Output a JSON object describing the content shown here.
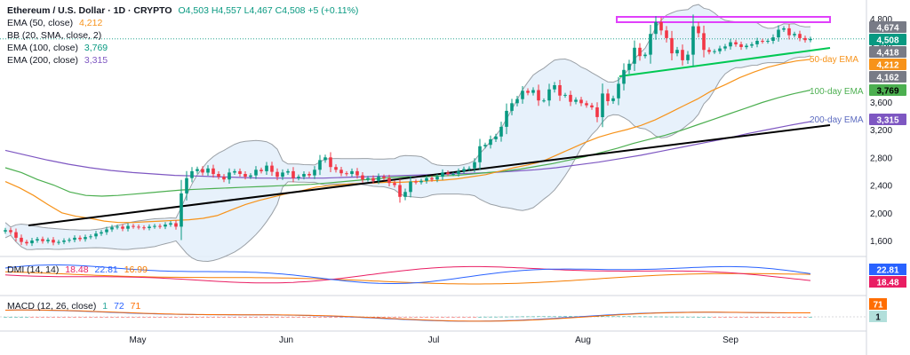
{
  "header": {
    "symbol": "Ethereum / U.S. Dollar · 1D · CRYPTO",
    "ohlc": "O4,503 H4,557 L4,467 C4,508 +5 (+0.11%)"
  },
  "indicators": {
    "ema50": {
      "label": "EMA (50, close)",
      "value": "4,212"
    },
    "bb": {
      "label": "BB (20, SMA, close, 2)"
    },
    "ema100": {
      "label": "EMA (100, close)",
      "value": "3,769"
    },
    "ema200": {
      "label": "EMA (200, close)",
      "value": "3,315"
    }
  },
  "dmi_legend": {
    "label": "DMI (14, 14)",
    "v1": "18.48",
    "v2": "22.81",
    "v3": "16.99"
  },
  "macd_legend": {
    "label": "MACD (12, 26, close)",
    "v1": "1",
    "v2": "72",
    "v3": "71"
  },
  "annotations": {
    "ema50": "50-day EMA",
    "ema100": "100-day EMA",
    "ema200": "200-day EMA"
  },
  "colors": {
    "up": "#089981",
    "down": "#f23645",
    "ema50": "#f7931a",
    "ema100": "#4caf50",
    "ema200": "#7e57c2",
    "bb": "#9aa0a6",
    "bbFill": "#e3eefa",
    "trend": "#000000",
    "support": "#00c853",
    "resist": "#e040fb"
  },
  "chart_data": {
    "type": "candlestick",
    "months": [
      "May",
      "Jun",
      "Jul",
      "Aug",
      "Sep"
    ],
    "yticks": [
      "4,800",
      "4,400",
      "4,000",
      "3,600",
      "3,200",
      "2,800",
      "2,400",
      "2,000",
      "1,600"
    ],
    "ylim": [
      1400,
      4800
    ],
    "price_badges": [
      "4,674",
      "4,508",
      "4,418",
      "4,212",
      "4,162",
      "3,769",
      "3,315"
    ],
    "dmi_badges": [
      "22.81",
      "18.48"
    ],
    "macd_badges": [
      "71",
      "1"
    ],
    "close_series": [
      1750,
      1720,
      1640,
      1580,
      1560,
      1600,
      1620,
      1590,
      1610,
      1570,
      1580,
      1600,
      1610,
      1640,
      1620,
      1650,
      1660,
      1700,
      1720,
      1760,
      1790,
      1800,
      1770,
      1810,
      1800,
      1790,
      1780,
      1800,
      1810,
      1800,
      1830,
      1850,
      1800,
      2280,
      2500,
      2600,
      2630,
      2580,
      2640,
      2560,
      2520,
      2480,
      2580,
      2600,
      2560,
      2520,
      2540,
      2620,
      2600,
      2680,
      2590,
      2520,
      2580,
      2600,
      2500,
      2520,
      2560,
      2540,
      2620,
      2760,
      2800,
      2660,
      2620,
      2570,
      2560,
      2600,
      2540,
      2480,
      2500,
      2460,
      2520,
      2500,
      2430,
      2400,
      2230,
      2300,
      2450,
      2440,
      2460,
      2500,
      2480,
      2520,
      2580,
      2560,
      2560,
      2600,
      2630,
      2640,
      2730,
      2960,
      2980,
      3060,
      3100,
      3240,
      3470,
      3580,
      3640,
      3760,
      3730,
      3770,
      3620,
      3620,
      3780,
      3840,
      3690,
      3700,
      3600,
      3630,
      3580,
      3550,
      3520,
      3380,
      3720,
      3610,
      3650,
      3860,
      4060,
      4150,
      4380,
      4260,
      4280,
      4580,
      4750,
      4630,
      4520,
      4300,
      4350,
      4200,
      4280,
      4690,
      4590,
      4350,
      4320,
      4330,
      4370,
      4400,
      4460,
      4430,
      4390,
      4410,
      4430,
      4480,
      4470,
      4480,
      4530,
      4640,
      4660,
      4560,
      4580,
      4520,
      4490,
      4508
    ],
    "ema50_series": [
      2450,
      2360,
      2250,
      2120,
      2000,
      1950,
      1920,
      1880,
      1860,
      1860,
      1870,
      1880,
      1890,
      1900,
      1920,
      1960,
      2040,
      2120,
      2180,
      2230,
      2280,
      2320,
      2370,
      2390,
      2410,
      2420,
      2430,
      2440,
      2440,
      2450,
      2460,
      2470,
      2490,
      2520,
      2550,
      2600,
      2650,
      2690,
      2740,
      2830,
      2920,
      3010,
      3090,
      3150,
      3200,
      3260,
      3340,
      3440,
      3540,
      3640,
      3760,
      3850,
      3950,
      4030,
      4100,
      4150,
      4190,
      4212
    ],
    "ema100_series": [
      2650,
      2580,
      2480,
      2400,
      2300,
      2250,
      2240,
      2250,
      2270,
      2290,
      2310,
      2330,
      2340,
      2350,
      2360,
      2370,
      2380,
      2390,
      2400,
      2410,
      2430,
      2450,
      2470,
      2490,
      2510,
      2520,
      2520,
      2530,
      2540,
      2560,
      2580,
      2600,
      2630,
      2670,
      2710,
      2760,
      2810,
      2870,
      2930,
      3000,
      3060,
      3120,
      3190,
      3270,
      3350,
      3430,
      3510,
      3590,
      3660,
      3720,
      3769
    ],
    "ema200_series": [
      2900,
      2830,
      2760,
      2700,
      2650,
      2610,
      2580,
      2560,
      2540,
      2530,
      2520,
      2510,
      2500,
      2500,
      2500,
      2500,
      2510,
      2520,
      2530,
      2540,
      2550,
      2560,
      2570,
      2580,
      2600,
      2620,
      2650,
      2690,
      2730,
      2780,
      2830,
      2890,
      2950,
      3010,
      3070,
      3140,
      3200,
      3260,
      3315
    ]
  }
}
